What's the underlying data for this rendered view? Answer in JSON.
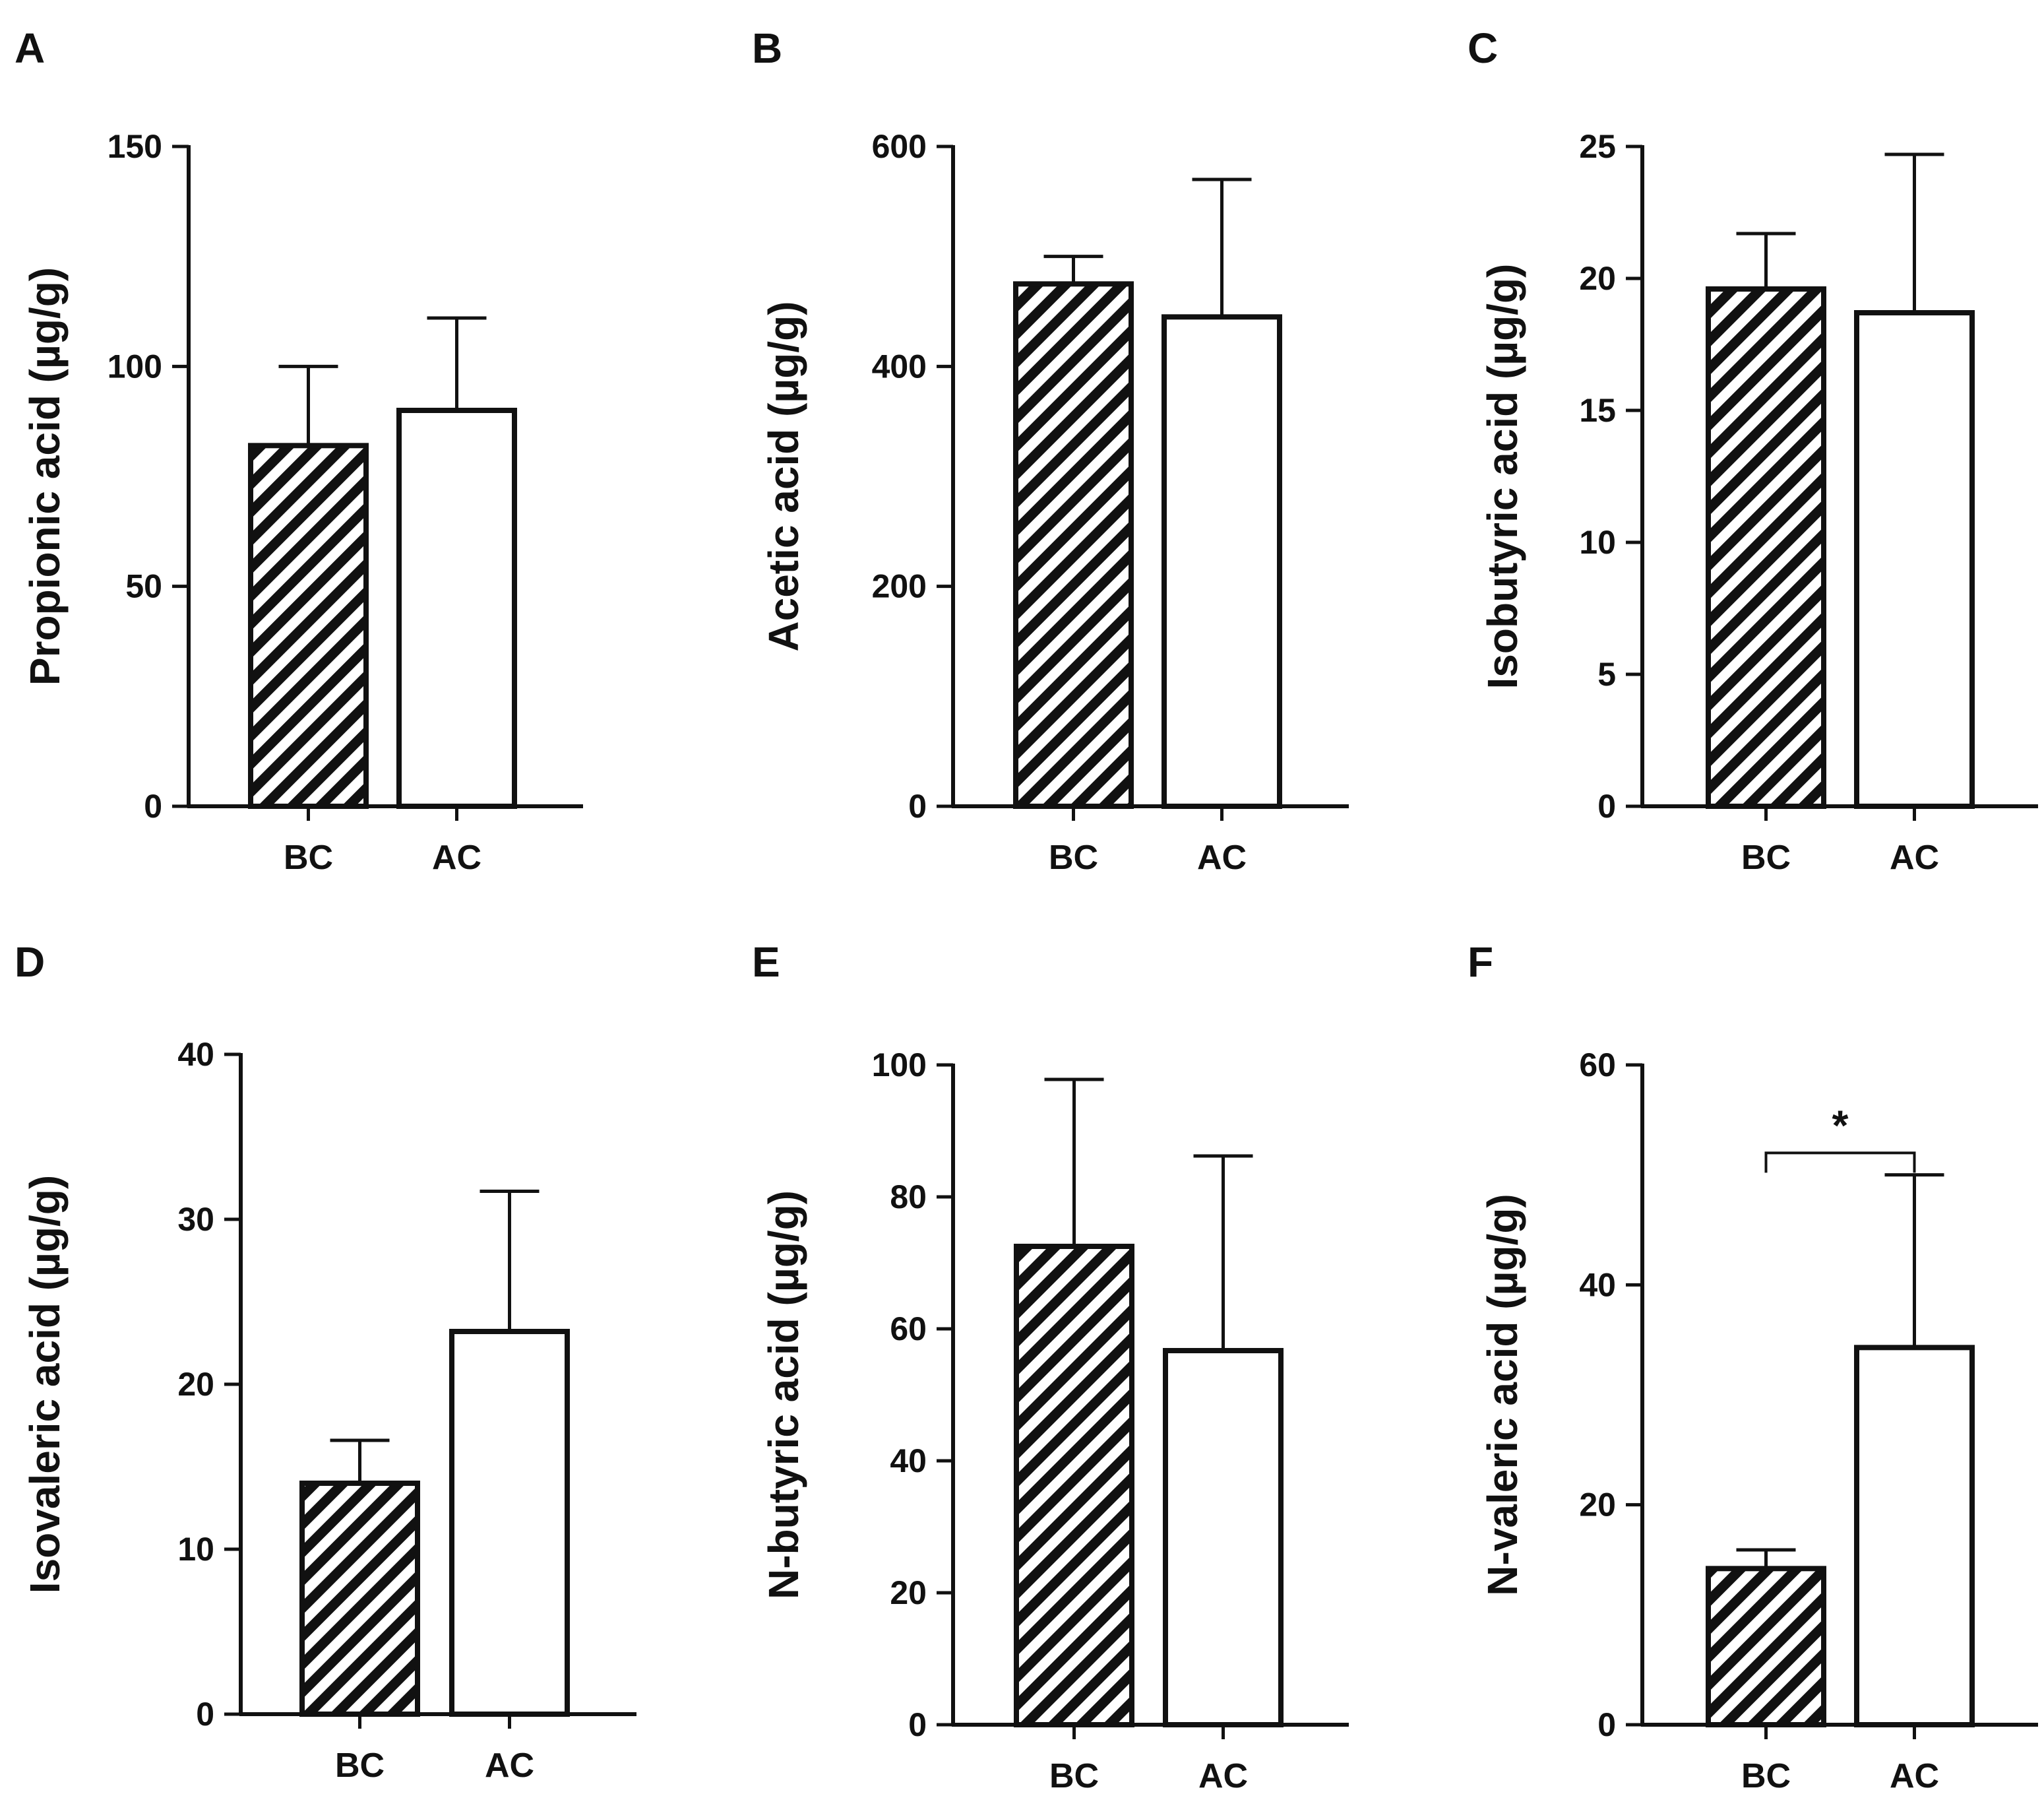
{
  "colors": {
    "ink": "#111111",
    "background": "#ffffff"
  },
  "chart_data": [
    {
      "panel": "A",
      "type": "bar",
      "ylabel": "Propionic acid (µg/g)",
      "categories": [
        "BC",
        "AC"
      ],
      "values": [
        82,
        90
      ],
      "errors": [
        18,
        21
      ],
      "ylim": [
        0,
        150
      ],
      "ticks": [
        0,
        50,
        100,
        150
      ],
      "tick_labels": [
        "0",
        "50",
        "100",
        "150"
      ],
      "patterns": [
        "hatched",
        "open"
      ],
      "significance": null
    },
    {
      "panel": "B",
      "type": "bar",
      "ylabel": "Acetic acid (µg/g)",
      "categories": [
        "BC",
        "AC"
      ],
      "values": [
        475,
        445
      ],
      "errors": [
        25,
        125
      ],
      "ylim": [
        0,
        600
      ],
      "ticks": [
        0,
        200,
        400,
        600
      ],
      "tick_labels": [
        "0",
        "200",
        "400",
        "600"
      ],
      "patterns": [
        "hatched",
        "open"
      ],
      "significance": null
    },
    {
      "panel": "C",
      "type": "bar",
      "ylabel": "Isobutyric acid (µg/g)",
      "categories": [
        "BC",
        "AC"
      ],
      "values": [
        19.6,
        18.7
      ],
      "errors": [
        2.1,
        6.0
      ],
      "ylim": [
        0,
        25
      ],
      "ticks": [
        0,
        5,
        10,
        15,
        20,
        25
      ],
      "tick_labels": [
        "0",
        "5",
        "10",
        "15",
        "20",
        "25"
      ],
      "patterns": [
        "hatched",
        "open"
      ],
      "significance": null
    },
    {
      "panel": "D",
      "type": "bar",
      "ylabel": "Isovaleric acid (µg/g)",
      "categories": [
        "BC",
        "AC"
      ],
      "values": [
        14.0,
        23.2
      ],
      "errors": [
        2.6,
        8.5
      ],
      "ylim": [
        0,
        40
      ],
      "ticks": [
        0,
        10,
        20,
        30,
        40
      ],
      "tick_labels": [
        "0",
        "10",
        "20",
        "30",
        "40"
      ],
      "patterns": [
        "hatched",
        "open"
      ],
      "significance": null
    },
    {
      "panel": "E",
      "type": "bar",
      "ylabel": "N-butyric acid (µg/g)",
      "categories": [
        "BC",
        "AC"
      ],
      "values": [
        72.5,
        56.7
      ],
      "errors": [
        25.3,
        29.5
      ],
      "ylim": [
        0,
        100
      ],
      "ticks": [
        0,
        20,
        40,
        60,
        80,
        100
      ],
      "tick_labels": [
        "0",
        "20",
        "40",
        "60",
        "80",
        "100"
      ],
      "patterns": [
        "hatched",
        "open"
      ],
      "significance": null
    },
    {
      "panel": "F",
      "type": "bar",
      "ylabel": "N-valeric acid (µg/g)",
      "categories": [
        "BC",
        "AC"
      ],
      "values": [
        14.2,
        34.3
      ],
      "errors": [
        1.7,
        15.7
      ],
      "ylim": [
        0,
        60
      ],
      "ticks": [
        0,
        20,
        40,
        60
      ],
      "tick_labels": [
        "0",
        "20",
        "40",
        "60"
      ],
      "patterns": [
        "hatched",
        "open"
      ],
      "significance": {
        "label": "*",
        "between": [
          "BC",
          "AC"
        ],
        "bracket_level": 52
      }
    }
  ]
}
